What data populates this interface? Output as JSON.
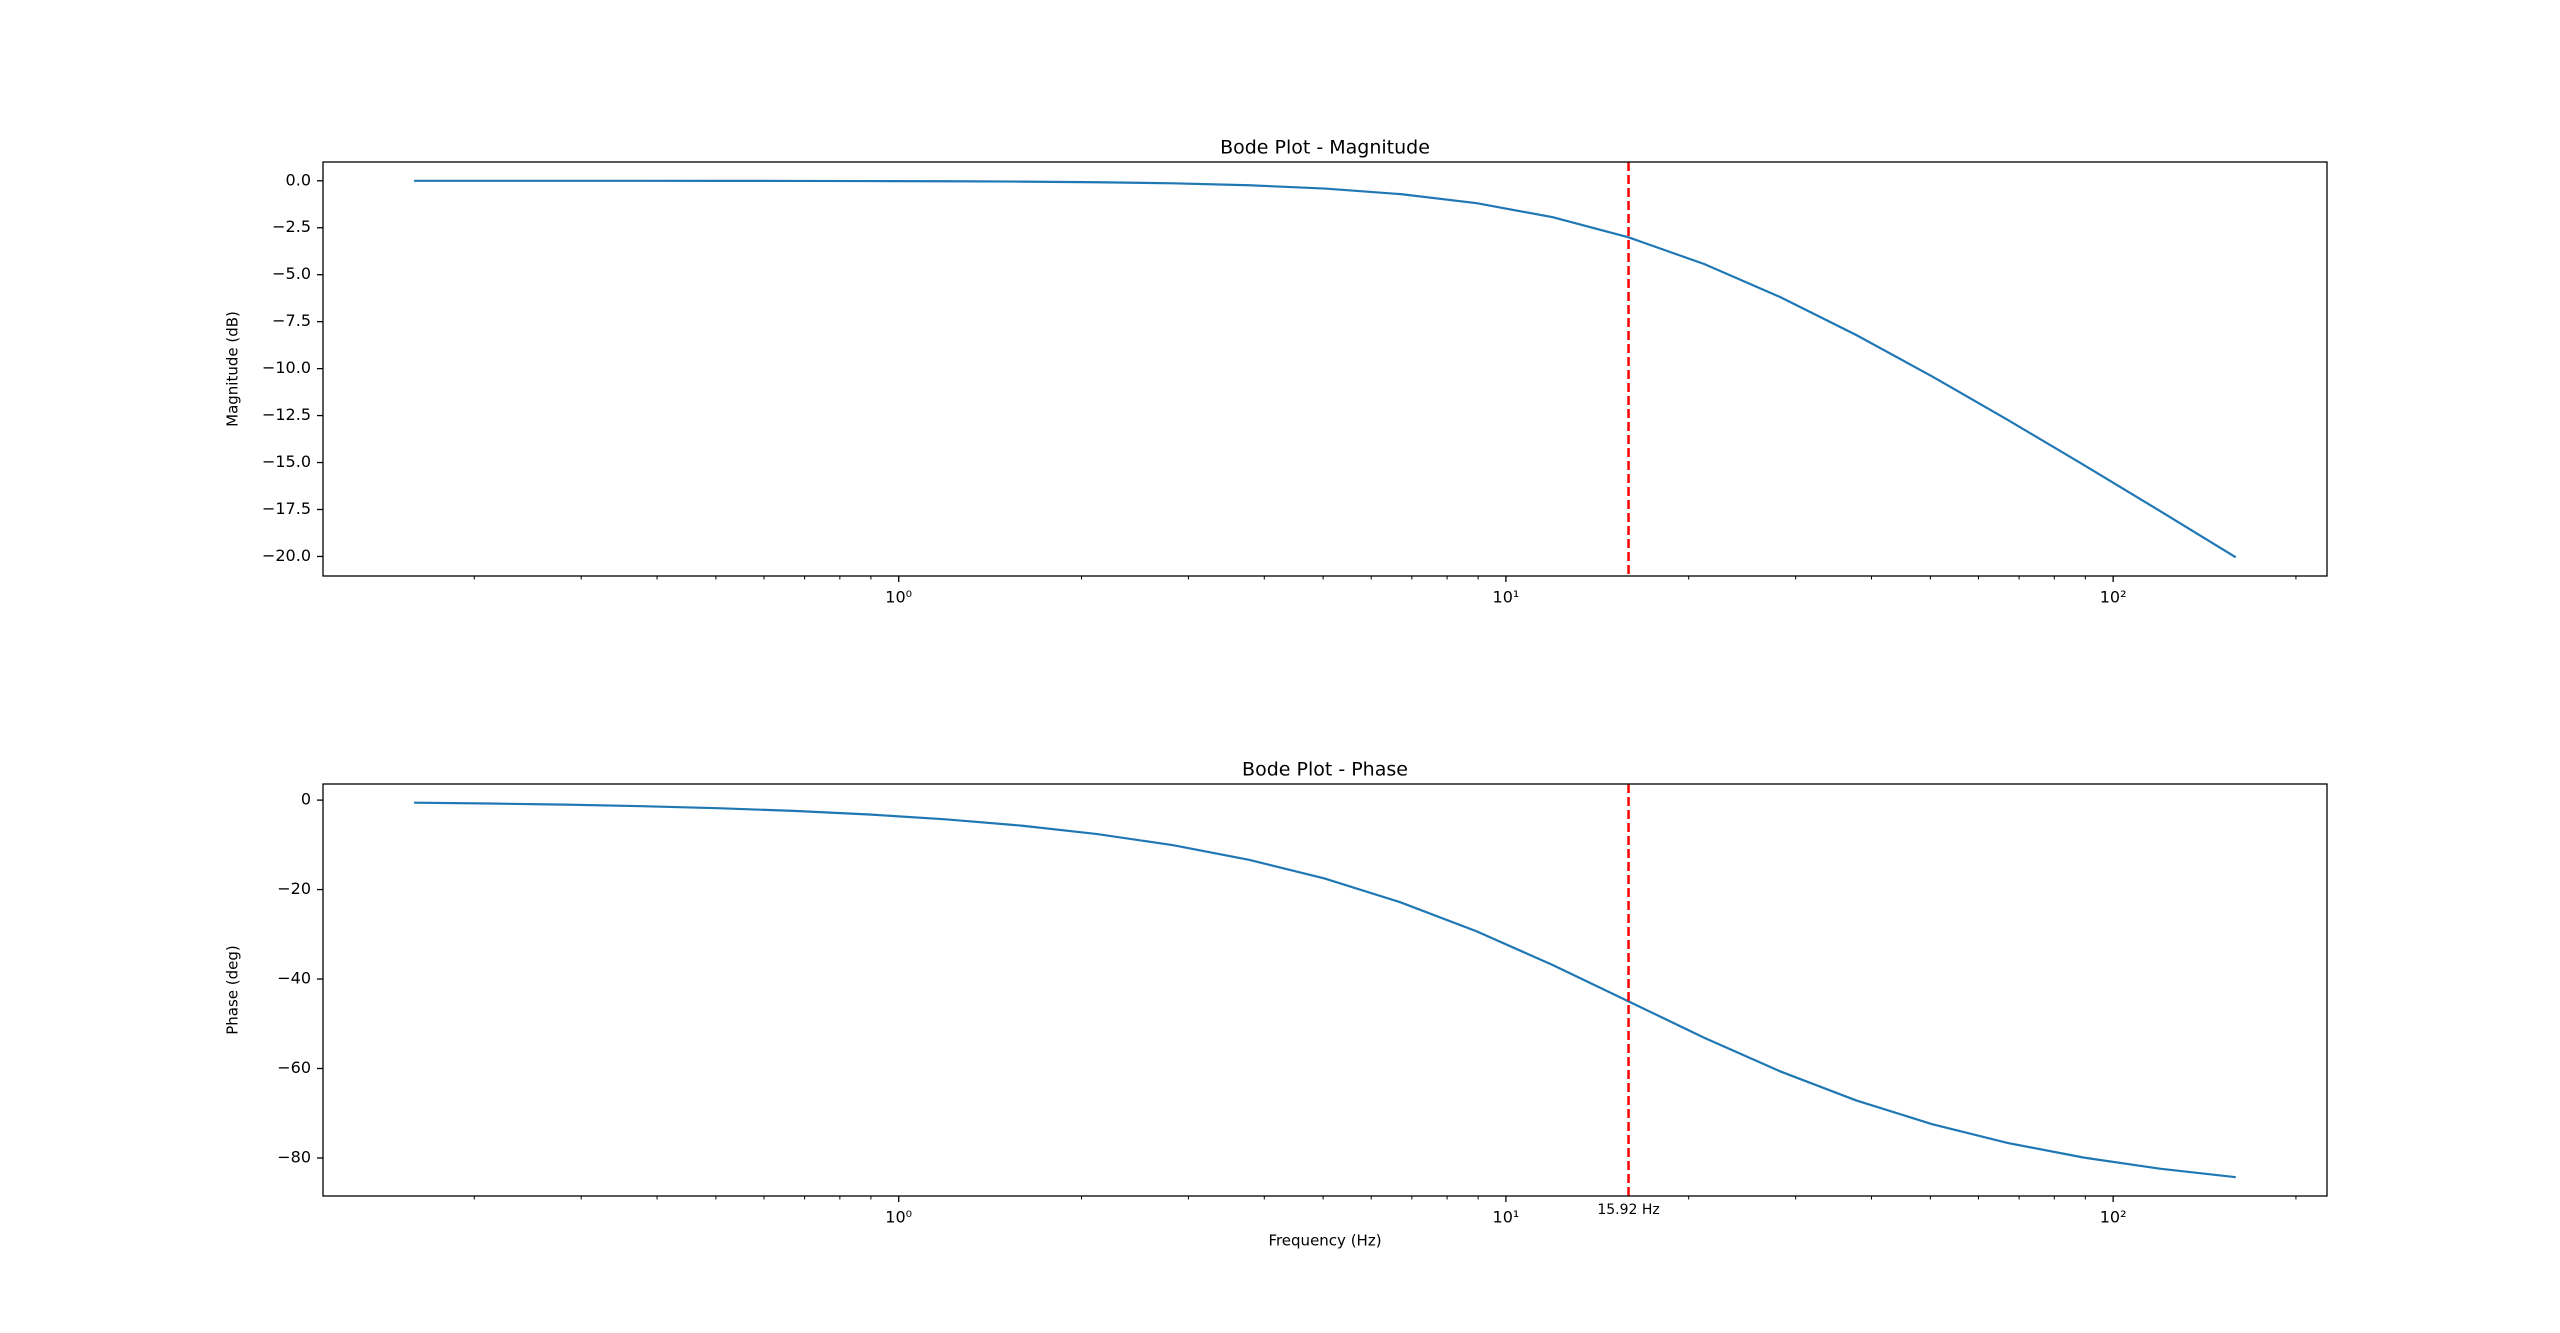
{
  "chart_data": [
    {
      "type": "line",
      "title": "Bode Plot - Magnitude",
      "ylabel": "Magnitude (dB)",
      "xscale": "log",
      "x": [
        0.1592,
        0.2123,
        0.2831,
        0.3775,
        0.5034,
        0.6713,
        0.8952,
        1.1938,
        1.592,
        2.123,
        2.831,
        3.775,
        5.034,
        6.713,
        8.952,
        11.94,
        15.92,
        21.23,
        28.31,
        37.75,
        50.34,
        67.13,
        89.52,
        119.4,
        159.2
      ],
      "series": [
        {
          "color": "#1f77b4",
          "values": [
            -0.0004,
            -0.0008,
            -0.0014,
            -0.0024,
            -0.0043,
            -0.0077,
            -0.0137,
            -0.0244,
            -0.0432,
            -0.0766,
            -0.1352,
            -0.2376,
            -0.4139,
            -0.7109,
            -1.193,
            -1.938,
            -3.01,
            -4.438,
            -6.193,
            -8.211,
            -10.414,
            -12.737,
            -15.135,
            -17.576,
            -20.043
          ]
        }
      ],
      "xlim": [
        0.1127,
        225
      ],
      "ylim": [
        -21.04,
        1.0
      ],
      "xticks": [
        {
          "value": 1,
          "label": "10⁰"
        },
        {
          "value": 10,
          "label": "10¹"
        },
        {
          "value": 100,
          "label": "10²"
        }
      ],
      "xticks_minor": [
        0.2,
        0.3,
        0.4,
        0.5,
        0.6,
        0.7,
        0.8,
        0.9,
        2,
        3,
        4,
        5,
        6,
        7,
        8,
        9,
        20,
        30,
        40,
        50,
        60,
        70,
        80,
        90,
        200
      ],
      "yticks": [
        {
          "value": 0,
          "label": "0.0"
        },
        {
          "value": -2.5,
          "label": "−2.5"
        },
        {
          "value": -5,
          "label": "−5.0"
        },
        {
          "value": -7.5,
          "label": "−7.5"
        },
        {
          "value": -10,
          "label": "−10.0"
        },
        {
          "value": -12.5,
          "label": "−12.5"
        },
        {
          "value": -15,
          "label": "−15.0"
        },
        {
          "value": -17.5,
          "label": "−17.5"
        },
        {
          "value": -20,
          "label": "−20.0"
        }
      ],
      "vline": {
        "x": 15.92,
        "color": "#ff0000"
      }
    },
    {
      "type": "line",
      "title": "Bode Plot - Phase",
      "ylabel": "Phase (deg)",
      "xlabel": "Frequency (Hz)",
      "xscale": "log",
      "x": [
        0.1592,
        0.2123,
        0.2831,
        0.3775,
        0.5034,
        0.6713,
        0.8952,
        1.1938,
        1.592,
        2.123,
        2.831,
        3.775,
        5.034,
        6.713,
        8.952,
        11.94,
        15.92,
        21.23,
        28.31,
        37.75,
        50.34,
        67.13,
        89.52,
        119.4,
        159.2
      ],
      "series": [
        {
          "color": "#1f77b4",
          "values": [
            -0.573,
            -0.764,
            -1.019,
            -1.358,
            -1.811,
            -2.415,
            -3.219,
            -4.288,
            -5.711,
            -7.596,
            -10.08,
            -13.34,
            -17.55,
            -22.87,
            -29.35,
            -36.86,
            -45,
            -53.14,
            -60.65,
            -67.13,
            -72.45,
            -76.66,
            -79.92,
            -82.4,
            -84.29
          ]
        }
      ],
      "xlim": [
        0.1127,
        225
      ],
      "ylim": [
        -88.5,
        3.6
      ],
      "xticks": [
        {
          "value": 1,
          "label": "10⁰"
        },
        {
          "value": 10,
          "label": "10¹"
        },
        {
          "value": 100,
          "label": "10²"
        }
      ],
      "xticks_minor": [
        0.2,
        0.3,
        0.4,
        0.5,
        0.6,
        0.7,
        0.8,
        0.9,
        2,
        3,
        4,
        5,
        6,
        7,
        8,
        9,
        20,
        30,
        40,
        50,
        60,
        70,
        80,
        90,
        200
      ],
      "yticks": [
        0,
        {
          "value": -20,
          "label": "−20"
        },
        {
          "value": -40,
          "label": "−40"
        },
        {
          "value": -60,
          "label": "−60"
        },
        {
          "value": -80,
          "label": "−80"
        }
      ],
      "vline": {
        "x": 15.92,
        "color": "#ff0000",
        "label": "15.92 Hz"
      }
    }
  ]
}
